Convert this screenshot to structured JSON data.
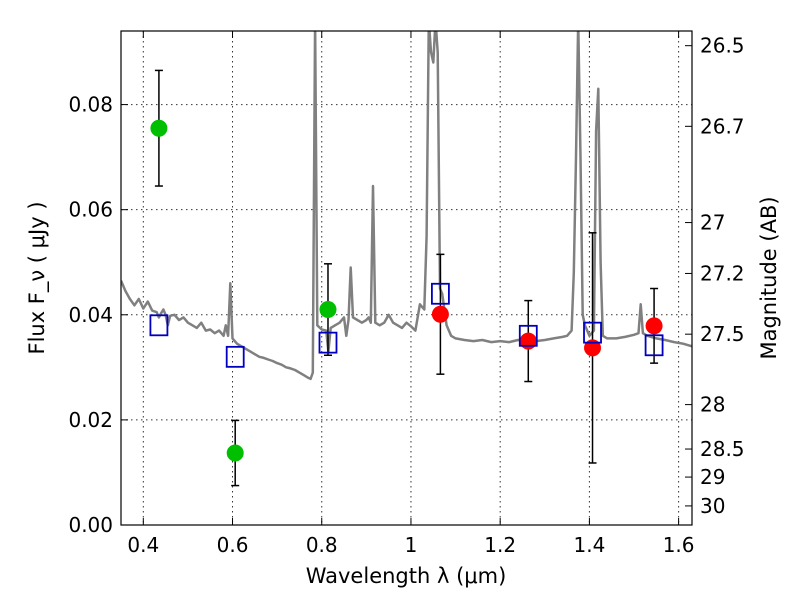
{
  "chart_data": {
    "type": "scatter",
    "xlabel": "Wavelength  λ (μm)",
    "ylabel": "Flux  F_ν  ( μJy )",
    "ylabel_right": "Magnitude (AB)",
    "xlim": [
      0.35,
      1.63
    ],
    "ylim": [
      0.0,
      0.094
    ],
    "grid": true,
    "x_ticks": [
      0.4,
      0.6,
      0.8,
      1.0,
      1.2,
      1.4,
      1.6
    ],
    "x_tick_labels": [
      "0.4",
      "0.6",
      "0.8",
      "1",
      "1.2",
      "1.4",
      "1.6"
    ],
    "y_ticks": [
      0.0,
      0.02,
      0.04,
      0.06,
      0.08
    ],
    "y_tick_labels": [
      "0.00",
      "0.02",
      "0.04",
      "0.06",
      "0.08"
    ],
    "mag_ticks": [
      26.5,
      26.7,
      27.0,
      27.2,
      27.5,
      28.0,
      28.5,
      29.0,
      30.0
    ],
    "mag_tick_labels": [
      "26.5",
      "26.7",
      "27",
      "27.2",
      "27.5",
      "28",
      "28.5",
      "29",
      "30"
    ],
    "series": [
      {
        "kind": "line",
        "color": "#808080",
        "points": [
          [
            0.35,
            0.0465
          ],
          [
            0.36,
            0.0445
          ],
          [
            0.37,
            0.043
          ],
          [
            0.38,
            0.0418
          ],
          [
            0.39,
            0.043
          ],
          [
            0.4,
            0.0412
          ],
          [
            0.41,
            0.0425
          ],
          [
            0.42,
            0.0408
          ],
          [
            0.43,
            0.0405
          ],
          [
            0.435,
            0.0395
          ],
          [
            0.44,
            0.0403
          ],
          [
            0.445,
            0.041
          ],
          [
            0.45,
            0.04
          ],
          [
            0.455,
            0.038
          ],
          [
            0.46,
            0.0398
          ],
          [
            0.47,
            0.04
          ],
          [
            0.48,
            0.039
          ],
          [
            0.49,
            0.0395
          ],
          [
            0.5,
            0.0385
          ],
          [
            0.51,
            0.038
          ],
          [
            0.52,
            0.0375
          ],
          [
            0.53,
            0.0385
          ],
          [
            0.54,
            0.037
          ],
          [
            0.55,
            0.0372
          ],
          [
            0.56,
            0.0365
          ],
          [
            0.57,
            0.037
          ],
          [
            0.58,
            0.036
          ],
          [
            0.585,
            0.038
          ],
          [
            0.59,
            0.036
          ],
          [
            0.595,
            0.046
          ],
          [
            0.6,
            0.0355
          ],
          [
            0.61,
            0.0345
          ],
          [
            0.62,
            0.034
          ],
          [
            0.63,
            0.0335
          ],
          [
            0.64,
            0.033
          ],
          [
            0.65,
            0.0325
          ],
          [
            0.66,
            0.032
          ],
          [
            0.67,
            0.0318
          ],
          [
            0.68,
            0.0315
          ],
          [
            0.69,
            0.0312
          ],
          [
            0.7,
            0.0308
          ],
          [
            0.71,
            0.0305
          ],
          [
            0.72,
            0.03
          ],
          [
            0.73,
            0.0298
          ],
          [
            0.74,
            0.0295
          ],
          [
            0.75,
            0.029
          ],
          [
            0.76,
            0.0285
          ],
          [
            0.77,
            0.028
          ],
          [
            0.775,
            0.0278
          ],
          [
            0.78,
            0.029
          ],
          [
            0.785,
            0.096
          ],
          [
            0.79,
            0.038
          ],
          [
            0.8,
            0.0372
          ],
          [
            0.81,
            0.037
          ],
          [
            0.815,
            0.033
          ],
          [
            0.82,
            0.0375
          ],
          [
            0.83,
            0.038
          ],
          [
            0.84,
            0.0385
          ],
          [
            0.85,
            0.0395
          ],
          [
            0.855,
            0.036
          ],
          [
            0.86,
            0.039
          ],
          [
            0.865,
            0.049
          ],
          [
            0.87,
            0.0395
          ],
          [
            0.88,
            0.039
          ],
          [
            0.89,
            0.0385
          ],
          [
            0.9,
            0.039
          ],
          [
            0.905,
            0.0395
          ],
          [
            0.91,
            0.0385
          ],
          [
            0.915,
            0.0645
          ],
          [
            0.92,
            0.0385
          ],
          [
            0.93,
            0.038
          ],
          [
            0.94,
            0.0385
          ],
          [
            0.95,
            0.04
          ],
          [
            0.96,
            0.0385
          ],
          [
            0.97,
            0.038
          ],
          [
            0.98,
            0.0375
          ],
          [
            0.99,
            0.0385
          ],
          [
            1.0,
            0.0378
          ],
          [
            1.01,
            0.037
          ],
          [
            1.02,
            0.042
          ],
          [
            1.03,
            0.041
          ],
          [
            1.035,
            0.055
          ],
          [
            1.04,
            0.096
          ],
          [
            1.045,
            0.09
          ],
          [
            1.05,
            0.088
          ],
          [
            1.055,
            0.096
          ],
          [
            1.06,
            0.09
          ],
          [
            1.065,
            0.045
          ],
          [
            1.07,
            0.044
          ],
          [
            1.08,
            0.038
          ],
          [
            1.09,
            0.036
          ],
          [
            1.1,
            0.0355
          ],
          [
            1.12,
            0.0352
          ],
          [
            1.14,
            0.035
          ],
          [
            1.16,
            0.0352
          ],
          [
            1.18,
            0.0348
          ],
          [
            1.2,
            0.035
          ],
          [
            1.22,
            0.0348
          ],
          [
            1.24,
            0.0352
          ],
          [
            1.26,
            0.035
          ],
          [
            1.28,
            0.035
          ],
          [
            1.3,
            0.0352
          ],
          [
            1.32,
            0.0355
          ],
          [
            1.34,
            0.0358
          ],
          [
            1.35,
            0.036
          ],
          [
            1.36,
            0.037
          ],
          [
            1.365,
            0.048
          ],
          [
            1.37,
            0.07
          ],
          [
            1.375,
            0.096
          ],
          [
            1.38,
            0.07
          ],
          [
            1.385,
            0.04
          ],
          [
            1.39,
            0.038
          ],
          [
            1.4,
            0.036
          ],
          [
            1.41,
            0.037
          ],
          [
            1.415,
            0.075
          ],
          [
            1.42,
            0.083
          ],
          [
            1.425,
            0.05
          ],
          [
            1.43,
            0.036
          ],
          [
            1.44,
            0.0355
          ],
          [
            1.46,
            0.0355
          ],
          [
            1.48,
            0.0358
          ],
          [
            1.5,
            0.0362
          ],
          [
            1.51,
            0.0365
          ],
          [
            1.515,
            0.042
          ],
          [
            1.52,
            0.0365
          ],
          [
            1.53,
            0.036
          ],
          [
            1.55,
            0.0355
          ],
          [
            1.57,
            0.0352
          ],
          [
            1.59,
            0.0348
          ],
          [
            1.61,
            0.0345
          ],
          [
            1.63,
            0.034
          ]
        ]
      },
      {
        "kind": "points",
        "marker": "circle",
        "color": "#00bf00",
        "points": [
          {
            "x": 0.435,
            "y": 0.0755,
            "err": 0.011
          },
          {
            "x": 0.606,
            "y": 0.0137,
            "err": 0.0062
          },
          {
            "x": 0.814,
            "y": 0.041,
            "err": 0.0087
          }
        ]
      },
      {
        "kind": "points",
        "marker": "circle",
        "color": "#ff0000",
        "points": [
          {
            "x": 1.066,
            "y": 0.0401,
            "err": 0.0114
          },
          {
            "x": 1.263,
            "y": 0.035,
            "err": 0.0077
          },
          {
            "x": 1.407,
            "y": 0.0337,
            "err": 0.0219
          },
          {
            "x": 1.545,
            "y": 0.0379,
            "err": 0.0071
          }
        ]
      },
      {
        "kind": "points",
        "marker": "square",
        "color": "#0000bf",
        "points": [
          {
            "x": 0.435,
            "y": 0.038
          },
          {
            "x": 0.606,
            "y": 0.032
          },
          {
            "x": 0.814,
            "y": 0.0347
          },
          {
            "x": 1.066,
            "y": 0.044
          },
          {
            "x": 1.263,
            "y": 0.036
          },
          {
            "x": 1.407,
            "y": 0.0366
          },
          {
            "x": 1.545,
            "y": 0.0342
          }
        ]
      }
    ]
  }
}
